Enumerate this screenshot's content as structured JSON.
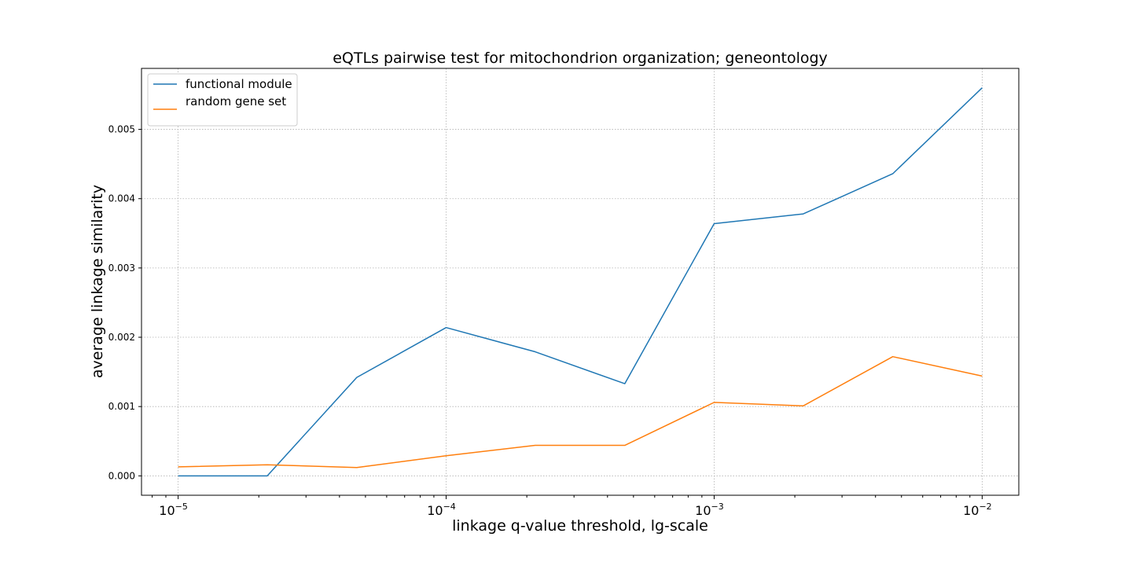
{
  "chart_data": {
    "type": "line",
    "title": "eQTLs pairwise test for mitochondrion organization; geneontology",
    "xlabel": "linkage q-value threshold, lg-scale",
    "ylabel": "average linkage similarity",
    "xscale": "log",
    "xlim": [
      7.3e-06,
      0.0137
    ],
    "ylim": [
      -0.00028,
      0.00588
    ],
    "x": [
      1e-05,
      2.15e-05,
      4.64e-05,
      0.0001,
      0.000215,
      0.000464,
      0.001,
      0.00215,
      0.00464,
      0.01
    ],
    "series": [
      {
        "name": "functional module",
        "color": "#1f77b4",
        "values": [
          0.0,
          0.0,
          0.00142,
          0.00214,
          0.00179,
          0.00133,
          0.00364,
          0.00378,
          0.00436,
          0.0056
        ]
      },
      {
        "name": "random gene set",
        "color": "#ff7f0e",
        "values": [
          0.00013,
          0.00016,
          0.00012,
          0.00029,
          0.00044,
          0.00044,
          0.00106,
          0.00101,
          0.00172,
          0.00144
        ]
      }
    ],
    "yticks": [
      {
        "value": 0.0,
        "label": "0.000"
      },
      {
        "value": 0.001,
        "label": "0.001"
      },
      {
        "value": 0.002,
        "label": "0.002"
      },
      {
        "value": 0.003,
        "label": "0.003"
      },
      {
        "value": 0.004,
        "label": "0.004"
      },
      {
        "value": 0.005,
        "label": "0.005"
      }
    ],
    "xticks": [
      {
        "value": 1e-05,
        "base": "10",
        "exp": "−5"
      },
      {
        "value": 0.0001,
        "base": "10",
        "exp": "−4"
      },
      {
        "value": 0.001,
        "base": "10",
        "exp": "−3"
      },
      {
        "value": 0.01,
        "base": "10",
        "exp": "−2"
      }
    ],
    "grid": true,
    "legend_position": "upper-left"
  }
}
